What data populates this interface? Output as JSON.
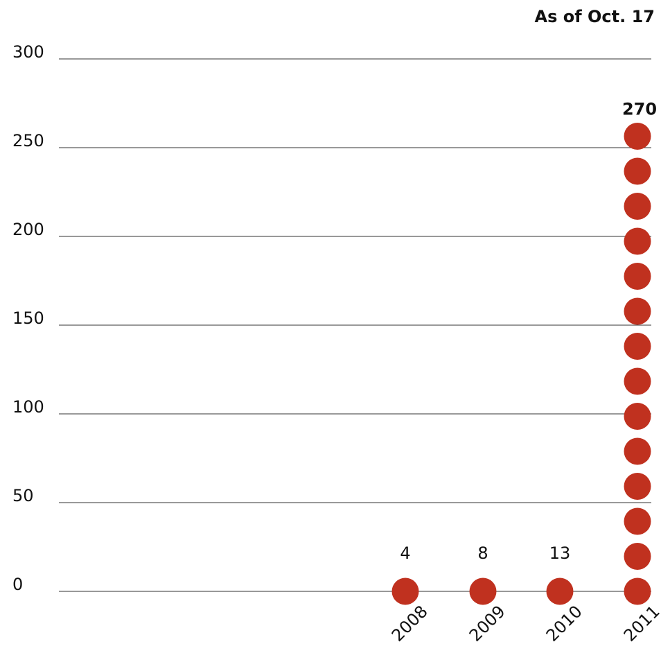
{
  "note": "As of Oct. 17",
  "colors": {
    "dot": "#c0311f",
    "grid": "#333333",
    "text": "#111111"
  },
  "chart_data": {
    "type": "scatter",
    "categories": [
      "2008",
      "2009",
      "2010",
      "2011"
    ],
    "values": [
      4,
      8,
      13,
      270
    ],
    "ylim": [
      0,
      300
    ],
    "yticks": [
      "0",
      "50",
      "100",
      "150",
      "200",
      "250",
      "300"
    ],
    "grid": true,
    "value_labels": [
      "4",
      "8",
      "13",
      "270"
    ],
    "title": "",
    "xlabel": "",
    "ylabel": "",
    "encoding": "stacked dots, one dot per 20 units"
  }
}
